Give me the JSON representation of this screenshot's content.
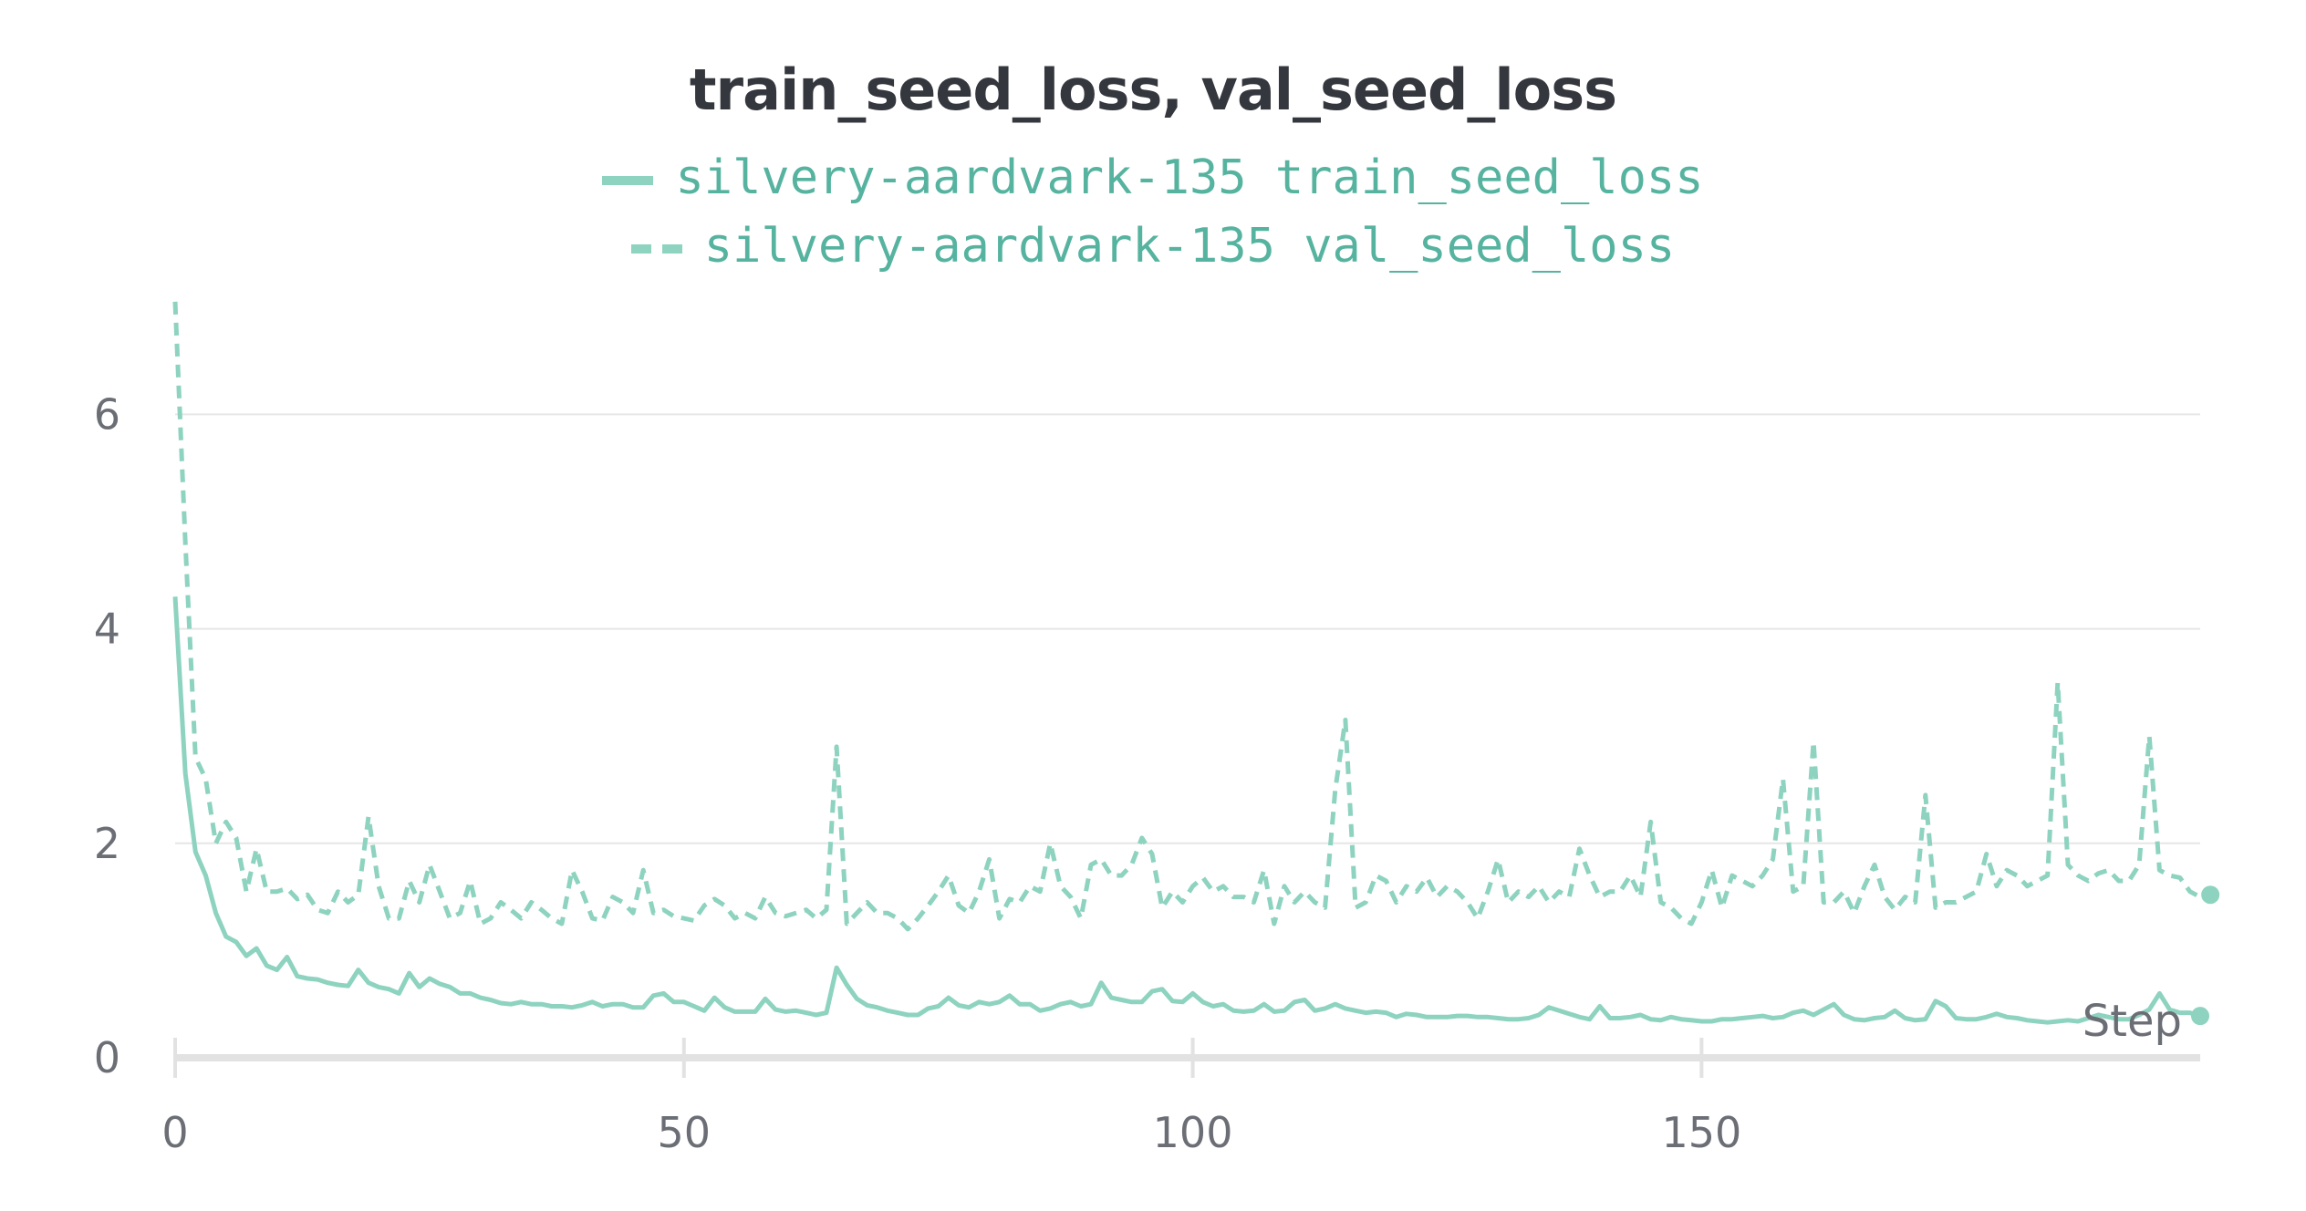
{
  "chart_data": {
    "type": "line",
    "title": "train_seed_loss, val_seed_loss",
    "xlabel": "Step",
    "ylabel": "",
    "xlim": [
      0,
      199
    ],
    "ylim": [
      0,
      7.1
    ],
    "xticks": [
      0,
      50,
      100,
      150
    ],
    "yticks": [
      0,
      2,
      4,
      6
    ],
    "grid": true,
    "legend": "top-center",
    "series": [
      {
        "name": "silvery-aardvark-135 train_seed_loss",
        "style": "solid",
        "color": "#8dd3bf",
        "values": [
          4.3,
          2.65,
          1.92,
          1.7,
          1.35,
          1.13,
          1.08,
          0.95,
          1.02,
          0.86,
          0.82,
          0.94,
          0.76,
          0.74,
          0.73,
          0.7,
          0.68,
          0.67,
          0.82,
          0.7,
          0.66,
          0.64,
          0.6,
          0.79,
          0.66,
          0.74,
          0.69,
          0.66,
          0.6,
          0.6,
          0.56,
          0.54,
          0.51,
          0.5,
          0.52,
          0.5,
          0.5,
          0.48,
          0.48,
          0.47,
          0.49,
          0.52,
          0.48,
          0.5,
          0.5,
          0.47,
          0.47,
          0.58,
          0.6,
          0.52,
          0.52,
          0.48,
          0.44,
          0.56,
          0.47,
          0.43,
          0.43,
          0.43,
          0.55,
          0.45,
          0.43,
          0.44,
          0.42,
          0.4,
          0.42,
          0.84,
          0.68,
          0.55,
          0.49,
          0.47,
          0.44,
          0.42,
          0.4,
          0.4,
          0.46,
          0.48,
          0.56,
          0.49,
          0.47,
          0.52,
          0.5,
          0.52,
          0.58,
          0.5,
          0.5,
          0.44,
          0.46,
          0.5,
          0.52,
          0.48,
          0.5,
          0.7,
          0.56,
          0.54,
          0.52,
          0.52,
          0.62,
          0.64,
          0.53,
          0.52,
          0.6,
          0.52,
          0.48,
          0.5,
          0.44,
          0.43,
          0.44,
          0.5,
          0.43,
          0.44,
          0.52,
          0.54,
          0.44,
          0.46,
          0.5,
          0.46,
          0.44,
          0.42,
          0.43,
          0.42,
          0.38,
          0.41,
          0.4,
          0.38,
          0.38,
          0.38,
          0.39,
          0.39,
          0.38,
          0.38,
          0.37,
          0.36,
          0.36,
          0.37,
          0.4,
          0.47,
          0.44,
          0.41,
          0.38,
          0.36,
          0.48,
          0.37,
          0.37,
          0.38,
          0.4,
          0.36,
          0.35,
          0.38,
          0.36,
          0.35,
          0.34,
          0.34,
          0.36,
          0.36,
          0.37,
          0.38,
          0.39,
          0.37,
          0.38,
          0.42,
          0.44,
          0.4,
          0.45,
          0.5,
          0.4,
          0.36,
          0.35,
          0.37,
          0.38,
          0.44,
          0.37,
          0.35,
          0.36,
          0.53,
          0.48,
          0.37,
          0.36,
          0.36,
          0.38,
          0.41,
          0.38,
          0.37,
          0.35,
          0.34,
          0.33,
          0.34,
          0.35,
          0.34,
          0.37,
          0.4,
          0.38,
          0.36,
          0.36,
          0.4,
          0.45,
          0.6,
          0.45,
          0.42,
          0.42,
          0.39
        ]
      },
      {
        "name": "silvery-aardvark-135 val_seed_loss",
        "style": "dashed",
        "color": "#8dd3bf",
        "values": [
          7.05,
          4.8,
          2.8,
          2.6,
          2.0,
          2.2,
          2.05,
          1.55,
          1.95,
          1.55,
          1.55,
          1.58,
          1.48,
          1.52,
          1.38,
          1.35,
          1.55,
          1.45,
          1.52,
          2.25,
          1.6,
          1.3,
          1.3,
          1.65,
          1.45,
          1.8,
          1.55,
          1.3,
          1.35,
          1.65,
          1.25,
          1.3,
          1.45,
          1.38,
          1.3,
          1.45,
          1.38,
          1.3,
          1.25,
          1.75,
          1.55,
          1.3,
          1.28,
          1.5,
          1.45,
          1.35,
          1.75,
          1.35,
          1.38,
          1.32,
          1.3,
          1.28,
          1.42,
          1.48,
          1.42,
          1.3,
          1.35,
          1.3,
          1.5,
          1.35,
          1.32,
          1.35,
          1.38,
          1.3,
          1.38,
          2.9,
          1.25,
          1.35,
          1.45,
          1.35,
          1.35,
          1.3,
          1.2,
          1.3,
          1.42,
          1.55,
          1.7,
          1.42,
          1.35,
          1.55,
          1.85,
          1.3,
          1.48,
          1.45,
          1.6,
          1.55,
          2.0,
          1.6,
          1.5,
          1.3,
          1.8,
          1.85,
          1.7,
          1.7,
          1.8,
          2.05,
          1.9,
          1.4,
          1.55,
          1.45,
          1.6,
          1.68,
          1.55,
          1.6,
          1.5,
          1.5,
          1.45,
          1.75,
          1.25,
          1.6,
          1.45,
          1.55,
          1.45,
          1.4,
          2.5,
          3.15,
          1.4,
          1.45,
          1.7,
          1.65,
          1.45,
          1.6,
          1.55,
          1.68,
          1.5,
          1.6,
          1.55,
          1.45,
          1.3,
          1.55,
          1.85,
          1.45,
          1.55,
          1.5,
          1.6,
          1.45,
          1.55,
          1.5,
          1.95,
          1.7,
          1.5,
          1.55,
          1.55,
          1.7,
          1.5,
          2.2,
          1.45,
          1.4,
          1.3,
          1.25,
          1.45,
          1.75,
          1.4,
          1.7,
          1.65,
          1.6,
          1.7,
          1.85,
          2.6,
          1.55,
          1.6,
          2.95,
          1.45,
          1.45,
          1.55,
          1.35,
          1.6,
          1.8,
          1.5,
          1.38,
          1.5,
          1.45,
          2.45,
          1.4,
          1.45,
          1.45,
          1.5,
          1.55,
          1.9,
          1.6,
          1.75,
          1.7,
          1.6,
          1.65,
          1.7,
          3.5,
          1.8,
          1.7,
          1.65,
          1.72,
          1.75,
          1.65,
          1.65,
          1.8,
          3.0,
          1.75,
          1.7,
          1.68,
          1.55,
          1.5,
          1.52
        ]
      }
    ]
  }
}
